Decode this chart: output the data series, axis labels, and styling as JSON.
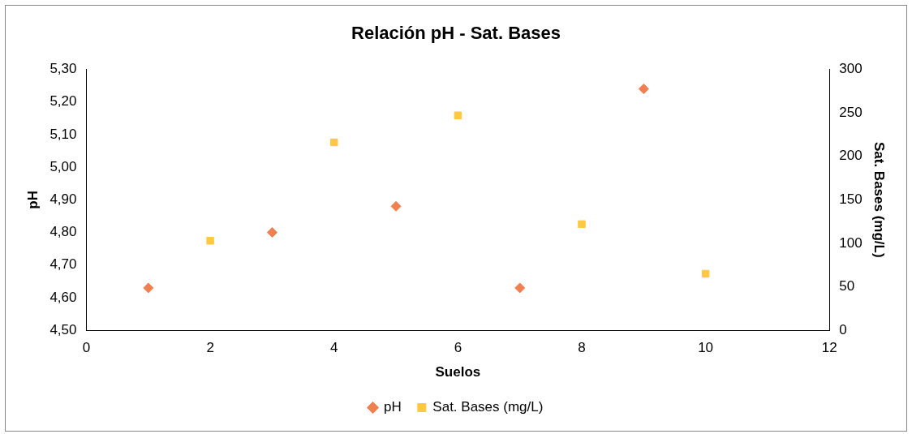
{
  "chart_data": {
    "type": "scatter",
    "title": "Relación pH - Sat. Bases",
    "xlabel": "Suelos",
    "ylabel": "pH",
    "y2label": "Sat. Bases (mg/L)",
    "xlim": [
      0,
      12
    ],
    "xticks": [
      0,
      2,
      4,
      6,
      8,
      10,
      12
    ],
    "ylim": [
      4.5,
      5.3
    ],
    "yticks": [
      {
        "value": 4.5,
        "label": "4,50"
      },
      {
        "value": 4.6,
        "label": "4,60"
      },
      {
        "value": 4.7,
        "label": "4,70"
      },
      {
        "value": 4.8,
        "label": "4,80"
      },
      {
        "value": 4.9,
        "label": "4,90"
      },
      {
        "value": 5.0,
        "label": "5,00"
      },
      {
        "value": 5.1,
        "label": "5,10"
      },
      {
        "value": 5.2,
        "label": "5,20"
      },
      {
        "value": 5.3,
        "label": "5,30"
      }
    ],
    "y2lim": [
      0,
      300
    ],
    "y2ticks": [
      0,
      50,
      100,
      150,
      200,
      250,
      300
    ],
    "grid": false,
    "legend": "bottom",
    "series": [
      {
        "name": "pH",
        "color": "#f08050",
        "marker": "diamond",
        "x": [
          1,
          3,
          5,
          7,
          9
        ],
        "values": [
          4.63,
          4.8,
          4.88,
          4.63,
          5.24
        ]
      },
      {
        "name": "Sat. Bases (mg/L)",
        "color": "#ffc840",
        "marker": "square",
        "axis": "y2",
        "x": [
          2,
          4,
          6,
          8,
          10
        ],
        "values": [
          103,
          216,
          247,
          122,
          65
        ]
      }
    ]
  }
}
